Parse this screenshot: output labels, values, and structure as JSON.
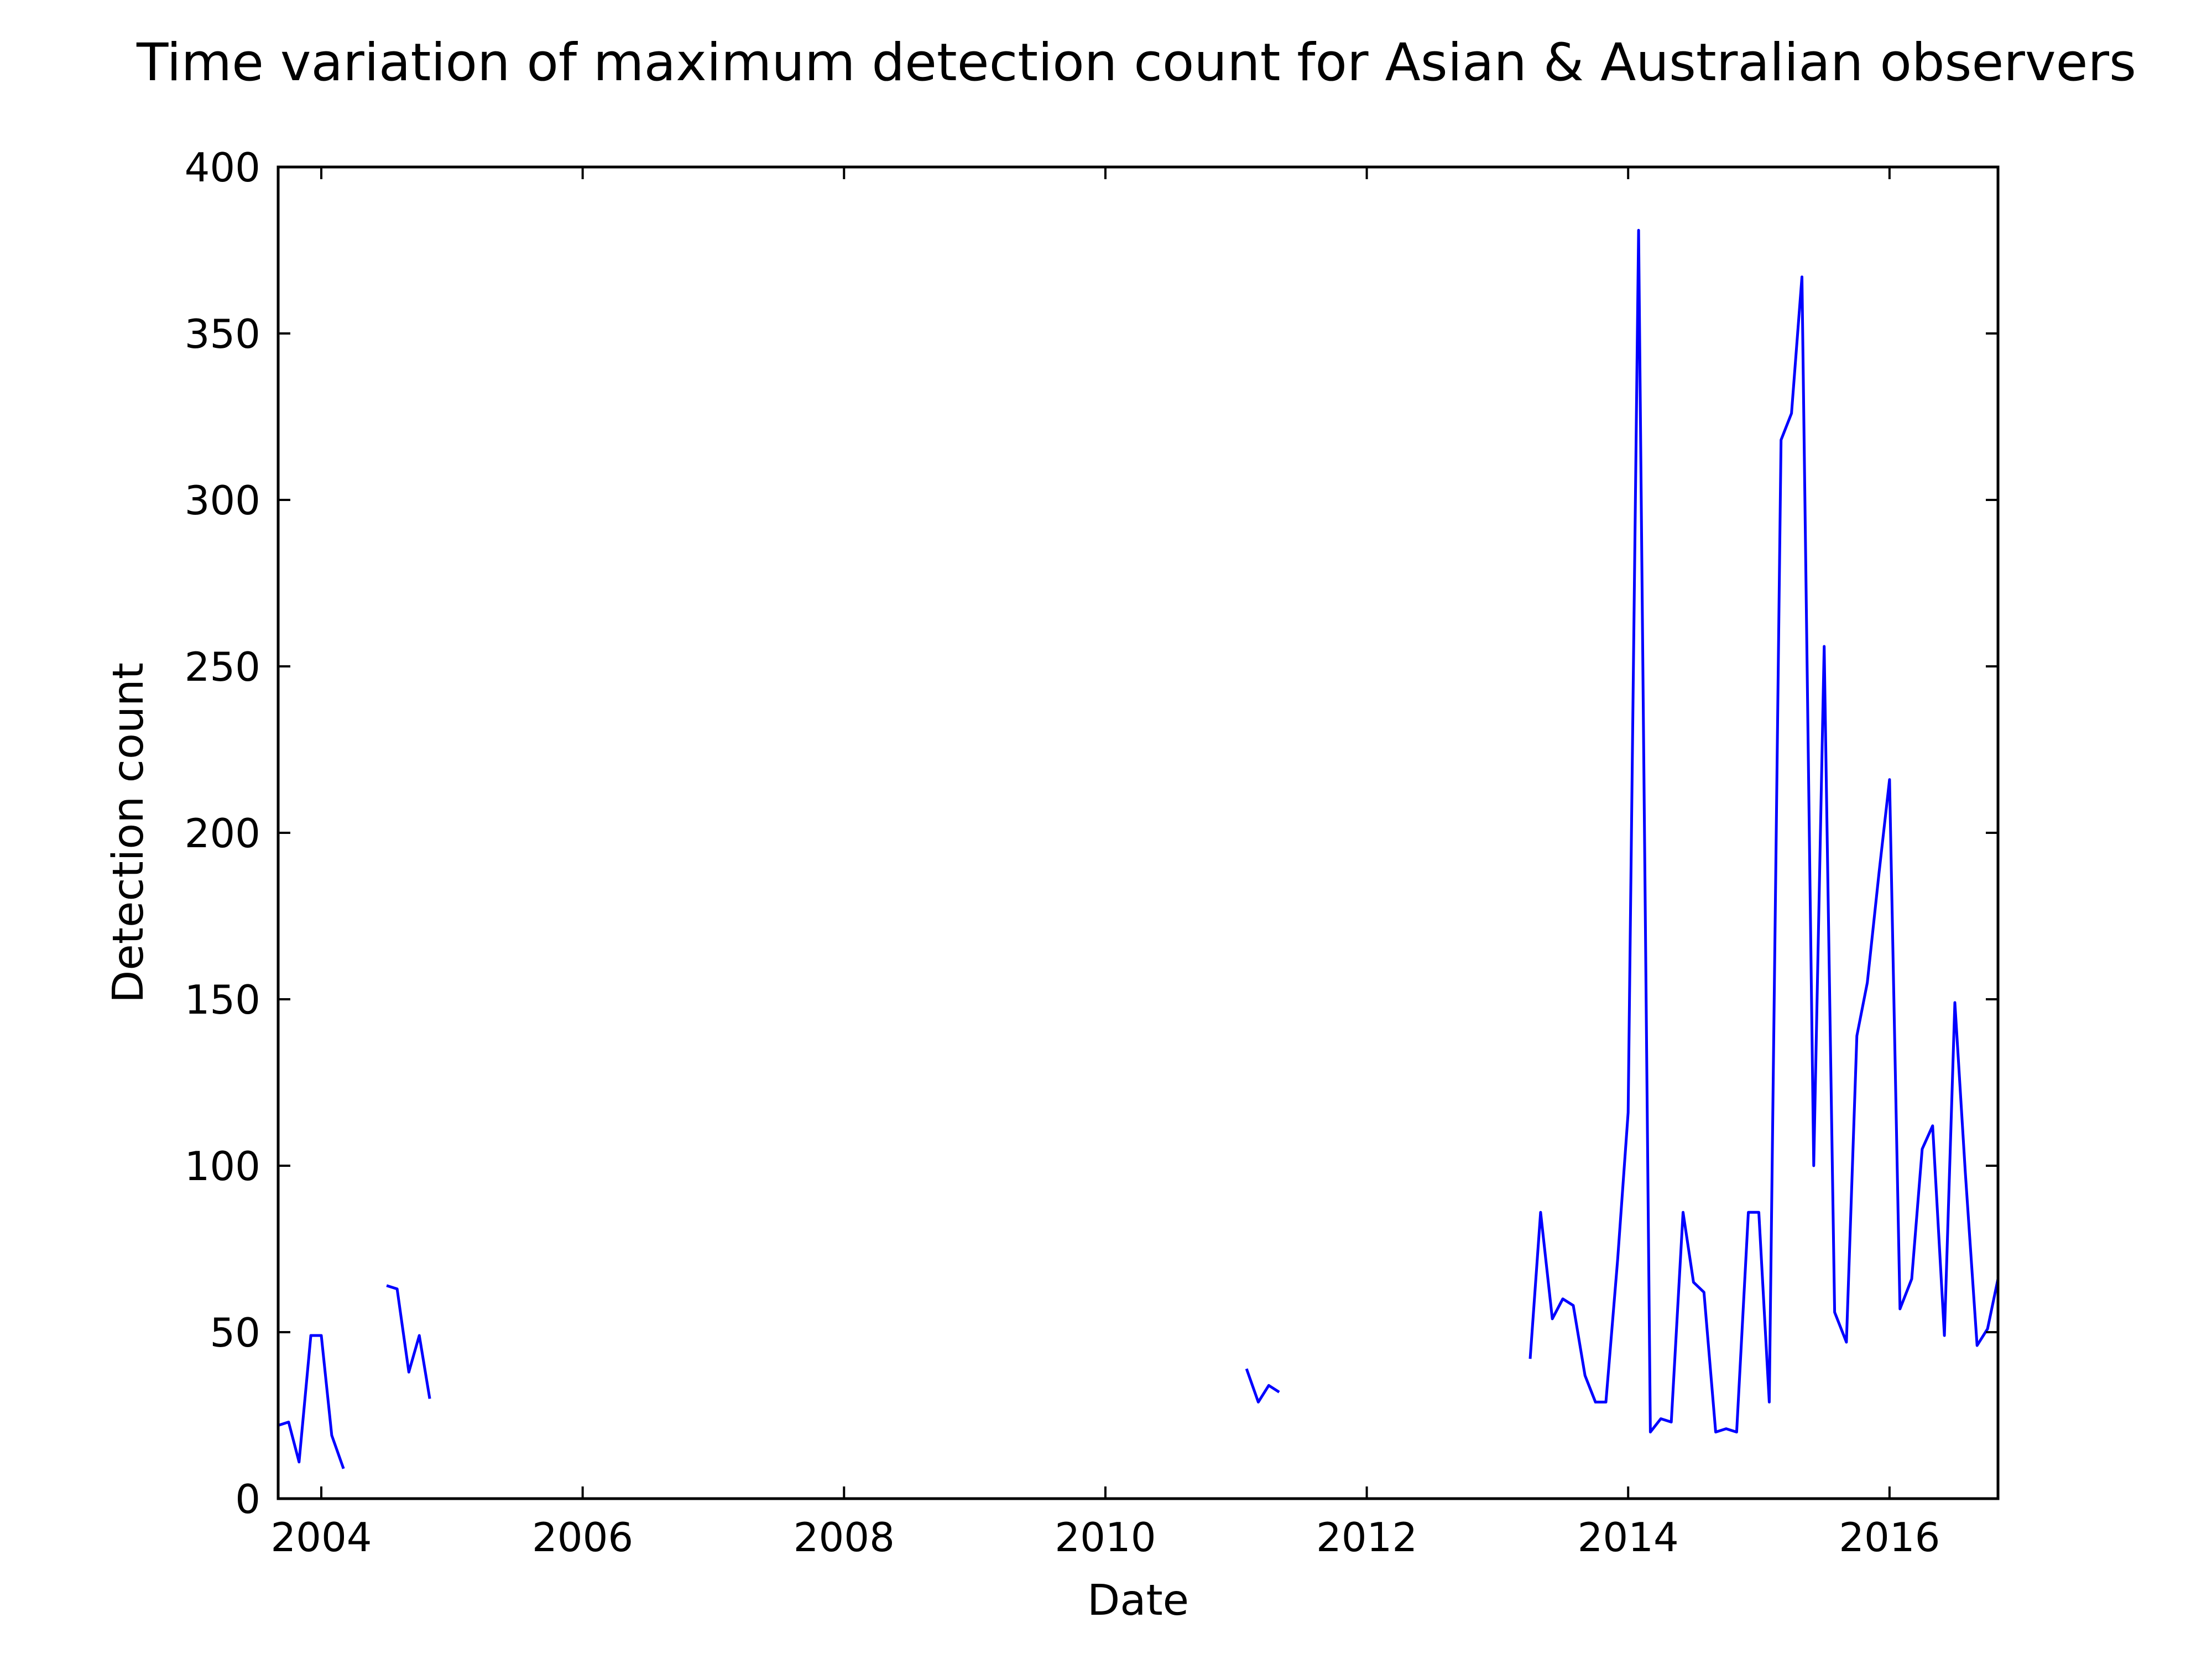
{
  "chart_data": {
    "type": "line",
    "title": "Time variation of maximum detection count for Asian & Australian observers",
    "xlabel": "Date",
    "ylabel": "Detection count",
    "xlim": [
      2003.67,
      2016.83
    ],
    "ylim": [
      0,
      400
    ],
    "x_ticks": [
      2004,
      2006,
      2008,
      2010,
      2012,
      2014,
      2016
    ],
    "x_tick_labels": [
      "2004",
      "2006",
      "2008",
      "2010",
      "2012",
      "2014",
      "2016"
    ],
    "y_ticks": [
      0,
      50,
      100,
      150,
      200,
      250,
      300,
      350,
      400
    ],
    "y_tick_labels": [
      "0",
      "50",
      "100",
      "150",
      "200",
      "250",
      "300",
      "350",
      "400"
    ],
    "grid": false,
    "legend": false,
    "series": [
      {
        "color": "#0000ff",
        "segments": [
          [
            [
              2003.67,
              22
            ],
            [
              2003.75,
              23
            ],
            [
              2003.83,
              11
            ],
            [
              2003.92,
              49
            ],
            [
              2004.0,
              49
            ],
            [
              2004.08,
              19
            ],
            [
              2004.17,
              9
            ]
          ],
          [
            [
              2004.5,
              64
            ],
            [
              2004.58,
              63
            ],
            [
              2004.67,
              38
            ],
            [
              2004.75,
              49
            ],
            [
              2004.83,
              30
            ]
          ],
          [
            [
              2011.08,
              39
            ],
            [
              2011.17,
              29
            ],
            [
              2011.25,
              34
            ],
            [
              2011.33,
              32
            ]
          ],
          [
            [
              2013.25,
              42
            ],
            [
              2013.33,
              86
            ],
            [
              2013.42,
              54
            ],
            [
              2013.5,
              60
            ],
            [
              2013.58,
              58
            ],
            [
              2013.67,
              37
            ],
            [
              2013.75,
              29
            ],
            [
              2013.83,
              29
            ],
            [
              2013.92,
              72
            ],
            [
              2014.0,
              116
            ],
            [
              2014.08,
              381
            ],
            [
              2014.17,
              20
            ],
            [
              2014.25,
              24
            ],
            [
              2014.33,
              23
            ],
            [
              2014.42,
              86
            ],
            [
              2014.5,
              65
            ],
            [
              2014.58,
              62
            ],
            [
              2014.67,
              20
            ],
            [
              2014.75,
              21
            ],
            [
              2014.83,
              20
            ],
            [
              2014.92,
              86
            ],
            [
              2015.0,
              86
            ],
            [
              2015.08,
              29
            ],
            [
              2015.17,
              318
            ],
            [
              2015.25,
              326
            ],
            [
              2015.33,
              367
            ],
            [
              2015.42,
              100
            ],
            [
              2015.5,
              256
            ],
            [
              2015.58,
              56
            ],
            [
              2015.67,
              47
            ],
            [
              2015.75,
              139
            ],
            [
              2015.83,
              155
            ],
            [
              2015.92,
              188
            ],
            [
              2016.0,
              216
            ],
            [
              2016.08,
              57
            ],
            [
              2016.17,
              66
            ],
            [
              2016.25,
              105
            ],
            [
              2016.33,
              112
            ],
            [
              2016.42,
              49
            ],
            [
              2016.5,
              149
            ],
            [
              2016.58,
              98
            ],
            [
              2016.67,
              46
            ],
            [
              2016.75,
              51
            ],
            [
              2016.83,
              66
            ]
          ]
        ]
      }
    ]
  }
}
